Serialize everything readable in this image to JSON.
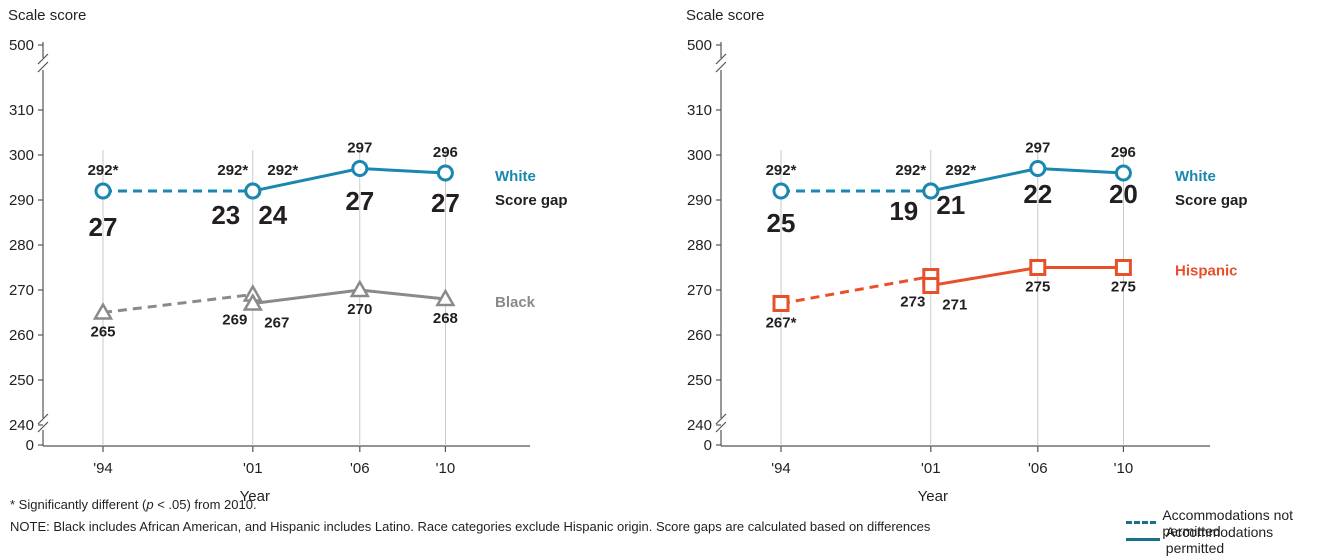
{
  "colors": {
    "white_series": "#1a87b0",
    "black_series": "#8a8a8a",
    "hispanic_series": "#e8502a",
    "legend_line": "#1a6f8a",
    "text": "#231f20",
    "axis": "#555555"
  },
  "chart_data": [
    {
      "type": "line",
      "ylabel": "Scale score",
      "xlabel": "Year",
      "x": [
        "'94",
        "'01",
        "'06",
        "'10"
      ],
      "x_years": [
        1994,
        2001,
        2006,
        2010
      ],
      "y_ticks": [
        "0",
        "240",
        "250",
        "260",
        "270",
        "280",
        "290",
        "300",
        "310",
        "500"
      ],
      "ylim": [
        235,
        315
      ],
      "axis_breaks": true,
      "series": [
        {
          "name": "White",
          "color": "#1a87b0",
          "marker": "circle",
          "points": [
            {
              "x": "'94",
              "y": 292,
              "label": "292*",
              "accommodations": "not permitted"
            },
            {
              "x": "'01",
              "y": 292,
              "label": "292*",
              "accommodations": "not permitted"
            },
            {
              "x": "'01",
              "y": 292,
              "label": "292*",
              "accommodations": "permitted"
            },
            {
              "x": "'06",
              "y": 297,
              "label": "297",
              "accommodations": "permitted"
            },
            {
              "x": "'10",
              "y": 296,
              "label": "296",
              "accommodations": "permitted"
            }
          ]
        },
        {
          "name": "Black",
          "color": "#8a8a8a",
          "marker": "triangle",
          "points": [
            {
              "x": "'94",
              "y": 265,
              "label": "265",
              "accommodations": "not permitted"
            },
            {
              "x": "'01",
              "y": 269,
              "label": "269",
              "accommodations": "not permitted"
            },
            {
              "x": "'01",
              "y": 267,
              "label": "267",
              "accommodations": "permitted"
            },
            {
              "x": "'06",
              "y": 270,
              "label": "270",
              "accommodations": "permitted"
            },
            {
              "x": "'10",
              "y": 268,
              "label": "268",
              "accommodations": "permitted"
            }
          ]
        }
      ],
      "gap_label": "Score gap",
      "gaps": [
        {
          "x": "'94",
          "value": "27",
          "accommodations": "not permitted"
        },
        {
          "x": "'01",
          "value": "23",
          "accommodations": "not permitted"
        },
        {
          "x": "'01",
          "value": "24",
          "accommodations": "permitted"
        },
        {
          "x": "'06",
          "value": "27",
          "accommodations": "permitted"
        },
        {
          "x": "'10",
          "value": "27",
          "accommodations": "permitted"
        }
      ]
    },
    {
      "type": "line",
      "ylabel": "Scale score",
      "xlabel": "Year",
      "x": [
        "'94",
        "'01",
        "'06",
        "'10"
      ],
      "x_years": [
        1994,
        2001,
        2006,
        2010
      ],
      "y_ticks": [
        "0",
        "240",
        "250",
        "260",
        "270",
        "280",
        "290",
        "300",
        "310",
        "500"
      ],
      "ylim": [
        235,
        315
      ],
      "axis_breaks": true,
      "series": [
        {
          "name": "White",
          "color": "#1a87b0",
          "marker": "circle",
          "points": [
            {
              "x": "'94",
              "y": 292,
              "label": "292*",
              "accommodations": "not permitted"
            },
            {
              "x": "'01",
              "y": 292,
              "label": "292*",
              "accommodations": "not permitted"
            },
            {
              "x": "'01",
              "y": 292,
              "label": "292*",
              "accommodations": "permitted"
            },
            {
              "x": "'06",
              "y": 297,
              "label": "297",
              "accommodations": "permitted"
            },
            {
              "x": "'10",
              "y": 296,
              "label": "296",
              "accommodations": "permitted"
            }
          ]
        },
        {
          "name": "Hispanic",
          "color": "#e8502a",
          "marker": "square",
          "points": [
            {
              "x": "'94",
              "y": 267,
              "label": "267*",
              "accommodations": "not permitted"
            },
            {
              "x": "'01",
              "y": 273,
              "label": "273",
              "accommodations": "not permitted"
            },
            {
              "x": "'01",
              "y": 271,
              "label": "271",
              "accommodations": "permitted"
            },
            {
              "x": "'06",
              "y": 275,
              "label": "275",
              "accommodations": "permitted"
            },
            {
              "x": "'10",
              "y": 275,
              "label": "275",
              "accommodations": "permitted"
            }
          ]
        }
      ],
      "gap_label": "Score gap",
      "gaps": [
        {
          "x": "'94",
          "value": "25",
          "accommodations": "not permitted"
        },
        {
          "x": "'01",
          "value": "19",
          "accommodations": "not permitted"
        },
        {
          "x": "'01",
          "value": "21",
          "accommodations": "permitted"
        },
        {
          "x": "'06",
          "value": "22",
          "accommodations": "permitted"
        },
        {
          "x": "'10",
          "value": "20",
          "accommodations": "permitted"
        }
      ]
    }
  ],
  "footnote": {
    "prefix": "* Significantly different (",
    "p_symbol": "p",
    "suffix": " < .05) from 2010."
  },
  "note_line": "NOTE: Black includes African American, and Hispanic includes Latino. Race categories exclude Hispanic origin. Score gaps are calculated based on differences",
  "legend": {
    "not_permitted": "Accommodations not permitted",
    "permitted": "Accommodations permitted"
  }
}
